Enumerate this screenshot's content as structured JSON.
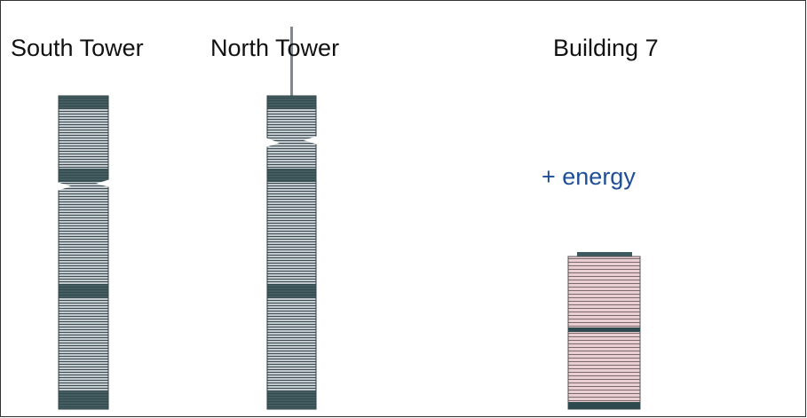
{
  "buildings": [
    {
      "label": "South Tower"
    },
    {
      "label": "North Tower"
    },
    {
      "label": "Building 7"
    }
  ],
  "annotation": "+ energy"
}
